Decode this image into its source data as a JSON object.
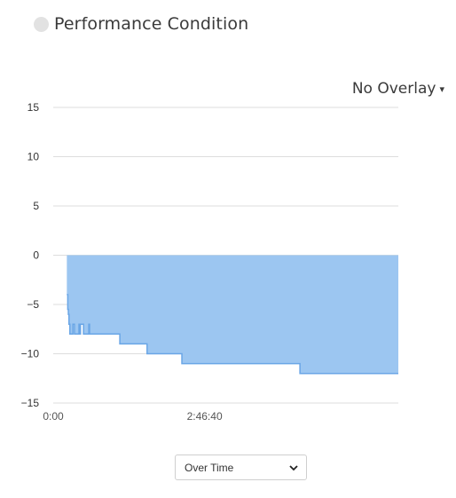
{
  "header": {
    "title": "Performance Condition"
  },
  "overlay": {
    "label": "No Overlay",
    "caret": "▾"
  },
  "view_select": {
    "selected": "Over Time"
  },
  "colors": {
    "area_fill": "#9cc6f1",
    "area_stroke": "#6aa6e6",
    "grid": "#dddddd",
    "dot": "#e2e2e2"
  },
  "chart_data": {
    "type": "area",
    "title": "",
    "xlabel": "",
    "ylabel": "",
    "ylim": [
      -15,
      15
    ],
    "y_ticks": [
      15,
      10,
      5,
      0,
      -5,
      -10,
      -15
    ],
    "y_tick_labels": [
      "15",
      "10",
      "5",
      "0",
      "−5",
      "−10",
      "−15"
    ],
    "x_tick_labels": [
      "0:00",
      "2:46:40"
    ],
    "x_ticks_seconds": [
      0,
      10000
    ],
    "xlim_seconds": [
      0,
      22800
    ],
    "grid": true,
    "series": [
      {
        "x_seconds": [
          900,
          960,
          1000,
          1040,
          1100,
          1300,
          1400,
          1500,
          1700,
          1750,
          1800,
          2000,
          2300,
          2350,
          2400,
          4400,
          6200,
          8500,
          16300,
          22800
        ],
        "y": [
          -4,
          -5.5,
          -6,
          -7,
          -8,
          -7,
          -8,
          -8,
          -7,
          -8,
          -7,
          -8,
          -8,
          -7,
          -8,
          -9,
          -10,
          -11,
          -12,
          -12
        ]
      }
    ]
  }
}
